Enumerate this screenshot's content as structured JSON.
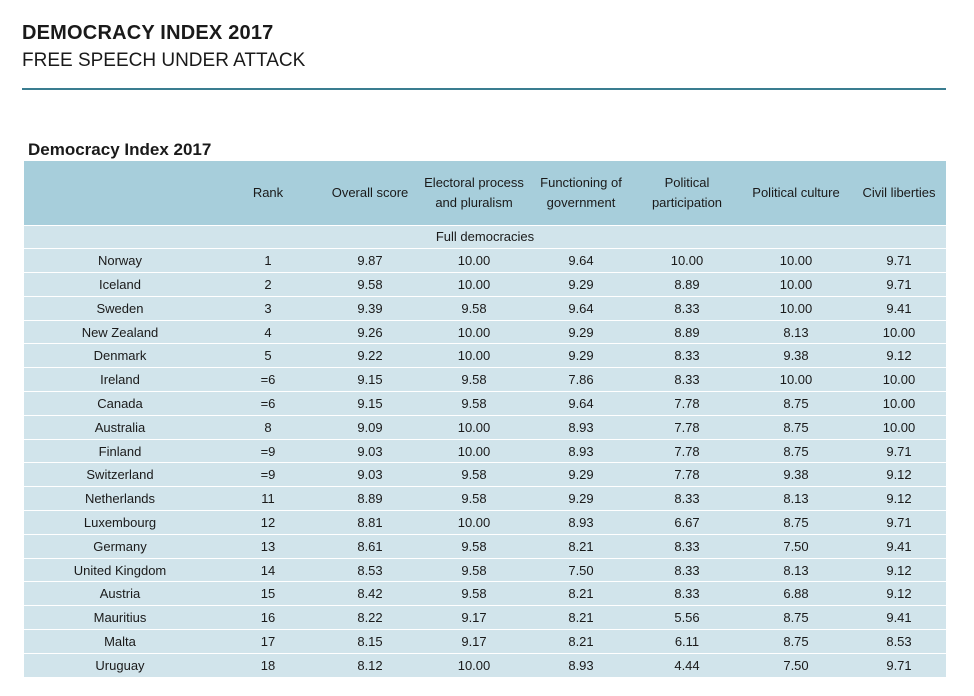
{
  "header": {
    "title": "DEMOCRACY INDEX 2017",
    "subtitle": "FREE SPEECH UNDER ATTACK"
  },
  "table": {
    "title": "Democracy Index 2017",
    "columns": [
      "",
      "Rank",
      "Overall score",
      "Electoral process and pluralism",
      "Functioning of government",
      "Political participation",
      "Political culture",
      "Civil liberties"
    ],
    "section_label": "Full democracies",
    "rows": [
      [
        "Norway",
        "1",
        "9.87",
        "10.00",
        "9.64",
        "10.00",
        "10.00",
        "9.71"
      ],
      [
        "Iceland",
        "2",
        "9.58",
        "10.00",
        "9.29",
        "8.89",
        "10.00",
        "9.71"
      ],
      [
        "Sweden",
        "3",
        "9.39",
        "9.58",
        "9.64",
        "8.33",
        "10.00",
        "9.41"
      ],
      [
        "New Zealand",
        "4",
        "9.26",
        "10.00",
        "9.29",
        "8.89",
        "8.13",
        "10.00"
      ],
      [
        "Denmark",
        "5",
        "9.22",
        "10.00",
        "9.29",
        "8.33",
        "9.38",
        "9.12"
      ],
      [
        "Ireland",
        "=6",
        "9.15",
        "9.58",
        "7.86",
        "8.33",
        "10.00",
        "10.00"
      ],
      [
        "Canada",
        "=6",
        "9.15",
        "9.58",
        "9.64",
        "7.78",
        "8.75",
        "10.00"
      ],
      [
        "Australia",
        "8",
        "9.09",
        "10.00",
        "8.93",
        "7.78",
        "8.75",
        "10.00"
      ],
      [
        "Finland",
        "=9",
        "9.03",
        "10.00",
        "8.93",
        "7.78",
        "8.75",
        "9.71"
      ],
      [
        "Switzerland",
        "=9",
        "9.03",
        "9.58",
        "9.29",
        "7.78",
        "9.38",
        "9.12"
      ],
      [
        "Netherlands",
        "11",
        "8.89",
        "9.58",
        "9.29",
        "8.33",
        "8.13",
        "9.12"
      ],
      [
        "Luxembourg",
        "12",
        "8.81",
        "10.00",
        "8.93",
        "6.67",
        "8.75",
        "9.71"
      ],
      [
        "Germany",
        "13",
        "8.61",
        "9.58",
        "8.21",
        "8.33",
        "7.50",
        "9.41"
      ],
      [
        "United Kingdom",
        "14",
        "8.53",
        "9.58",
        "7.50",
        "8.33",
        "8.13",
        "9.12"
      ],
      [
        "Austria",
        "15",
        "8.42",
        "9.58",
        "8.21",
        "8.33",
        "6.88",
        "9.12"
      ],
      [
        "Mauritius",
        "16",
        "8.22",
        "9.17",
        "8.21",
        "5.56",
        "8.75",
        "9.41"
      ],
      [
        "Malta",
        "17",
        "8.15",
        "9.17",
        "8.21",
        "6.11",
        "8.75",
        "8.53"
      ],
      [
        "Uruguay",
        "18",
        "8.12",
        "10.00",
        "8.93",
        "4.44",
        "7.50",
        "9.71"
      ]
    ]
  },
  "colors": {
    "rule": "#3a7d90",
    "header_bg": "#a7cedb",
    "row_bg": "#d1e4eb"
  }
}
